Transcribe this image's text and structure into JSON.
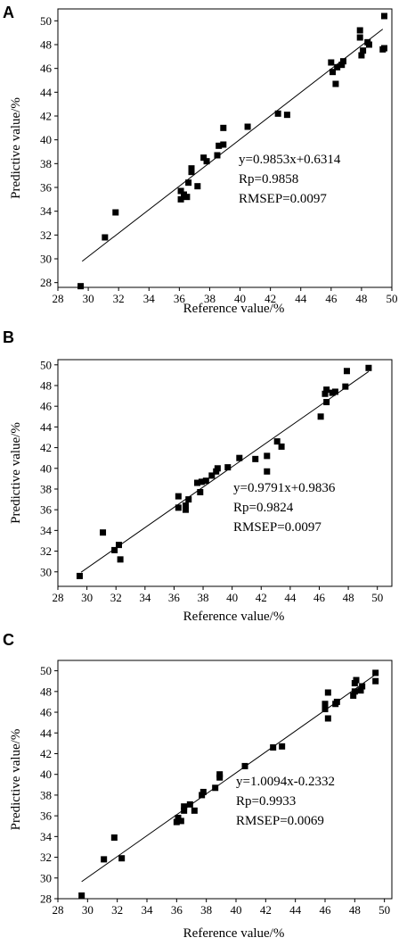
{
  "chart_data": [
    {
      "type": "scatter",
      "panel": "A",
      "xlabel": "Reference value/%",
      "ylabel": "Predictive value/%",
      "xlim": [
        28,
        50
      ],
      "ylim": [
        27.6,
        51
      ],
      "xticks": [
        28,
        30,
        32,
        34,
        36,
        38,
        40,
        42,
        44,
        46,
        48,
        50
      ],
      "yticks": [
        28,
        30,
        32,
        34,
        36,
        38,
        40,
        42,
        44,
        46,
        48,
        50
      ],
      "annotations": [
        "y=0.9853x+0.6314",
        "Rp=0.9858",
        "RMSEP=0.0097"
      ],
      "fit": {
        "slope": 0.9853,
        "intercept": 0.6314,
        "x_range": [
          29.6,
          49.4
        ]
      },
      "points": [
        [
          29.5,
          27.7
        ],
        [
          31.1,
          31.8
        ],
        [
          31.8,
          33.9
        ],
        [
          36.1,
          35.0
        ],
        [
          36.1,
          35.7
        ],
        [
          36.3,
          35.4
        ],
        [
          36.5,
          35.2
        ],
        [
          36.6,
          36.4
        ],
        [
          36.8,
          37.3
        ],
        [
          36.8,
          37.6
        ],
        [
          37.2,
          36.1
        ],
        [
          37.6,
          38.5
        ],
        [
          37.8,
          38.2
        ],
        [
          38.5,
          38.7
        ],
        [
          38.6,
          39.5
        ],
        [
          38.9,
          39.6
        ],
        [
          38.9,
          41.0
        ],
        [
          40.5,
          41.1
        ],
        [
          42.5,
          42.2
        ],
        [
          43.1,
          42.1
        ],
        [
          46.0,
          46.5
        ],
        [
          46.1,
          45.7
        ],
        [
          46.3,
          44.7
        ],
        [
          46.4,
          46.1
        ],
        [
          46.7,
          46.3
        ],
        [
          46.8,
          46.6
        ],
        [
          47.9,
          48.6
        ],
        [
          47.9,
          49.2
        ],
        [
          48.0,
          47.1
        ],
        [
          48.1,
          47.5
        ],
        [
          48.4,
          48.2
        ],
        [
          48.5,
          48.0
        ],
        [
          49.4,
          47.6
        ],
        [
          49.5,
          47.7
        ],
        [
          49.5,
          50.4
        ]
      ]
    },
    {
      "type": "scatter",
      "panel": "B",
      "xlabel": "Reference value/%",
      "ylabel": "Predictive value/%",
      "xlim": [
        28,
        51
      ],
      "ylim": [
        28.6,
        50.5
      ],
      "xticks": [
        28,
        30,
        32,
        34,
        36,
        38,
        40,
        42,
        44,
        46,
        48,
        50
      ],
      "yticks": [
        30,
        32,
        34,
        36,
        38,
        40,
        42,
        44,
        46,
        48,
        50
      ],
      "annotations": [
        "y=0.9791x+0.9836",
        "Rp=0.9824",
        "RMSEP=0.0097"
      ],
      "fit": {
        "slope": 0.9791,
        "intercept": 0.9836,
        "x_range": [
          29.6,
          49.4
        ]
      },
      "points": [
        [
          29.5,
          29.6
        ],
        [
          31.1,
          33.8
        ],
        [
          31.9,
          32.1
        ],
        [
          32.2,
          32.6
        ],
        [
          32.3,
          31.2
        ],
        [
          36.3,
          36.2
        ],
        [
          36.3,
          37.3
        ],
        [
          36.8,
          36.0
        ],
        [
          36.8,
          36.4
        ],
        [
          37.0,
          37.0
        ],
        [
          37.6,
          38.6
        ],
        [
          37.8,
          37.7
        ],
        [
          37.9,
          38.7
        ],
        [
          38.2,
          38.8
        ],
        [
          38.6,
          39.3
        ],
        [
          38.9,
          39.7
        ],
        [
          39.0,
          40.0
        ],
        [
          39.7,
          40.1
        ],
        [
          40.5,
          41.0
        ],
        [
          41.6,
          40.9
        ],
        [
          42.4,
          39.7
        ],
        [
          42.4,
          41.2
        ],
        [
          43.1,
          42.6
        ],
        [
          43.4,
          42.1
        ],
        [
          46.1,
          45.0
        ],
        [
          46.4,
          47.2
        ],
        [
          46.5,
          46.4
        ],
        [
          46.5,
          47.6
        ],
        [
          46.9,
          47.3
        ],
        [
          47.1,
          47.4
        ],
        [
          47.8,
          47.9
        ],
        [
          47.9,
          49.4
        ],
        [
          49.4,
          49.7
        ]
      ]
    },
    {
      "type": "scatter",
      "panel": "C",
      "xlabel": "Reference value/%",
      "ylabel": "Predictive value/%",
      "xlim": [
        28,
        50.5
      ],
      "ylim": [
        28,
        51
      ],
      "xticks": [
        28,
        30,
        32,
        34,
        36,
        38,
        40,
        42,
        44,
        46,
        48,
        50
      ],
      "yticks": [
        28,
        30,
        32,
        34,
        36,
        38,
        40,
        42,
        44,
        46,
        48,
        50
      ],
      "annotations": [
        "y=1.0094x-0.2332",
        "Rp=0.9933",
        "RMSEP=0.0069"
      ],
      "fit": {
        "slope": 1.0094,
        "intercept": -0.2332,
        "x_range": [
          29.6,
          49.4
        ]
      },
      "points": [
        [
          29.6,
          28.3
        ],
        [
          31.1,
          31.8
        ],
        [
          31.8,
          33.9
        ],
        [
          32.3,
          31.9
        ],
        [
          36.0,
          35.4
        ],
        [
          36.1,
          35.8
        ],
        [
          36.3,
          35.5
        ],
        [
          36.5,
          36.5
        ],
        [
          36.5,
          36.9
        ],
        [
          36.9,
          37.1
        ],
        [
          37.2,
          36.5
        ],
        [
          37.7,
          38.0
        ],
        [
          37.8,
          38.3
        ],
        [
          38.6,
          38.7
        ],
        [
          38.9,
          39.7
        ],
        [
          38.9,
          40.0
        ],
        [
          40.6,
          40.8
        ],
        [
          42.5,
          42.6
        ],
        [
          43.1,
          42.7
        ],
        [
          46.0,
          46.3
        ],
        [
          46.0,
          46.8
        ],
        [
          46.2,
          47.9
        ],
        [
          46.2,
          45.4
        ],
        [
          46.7,
          46.8
        ],
        [
          46.8,
          47.0
        ],
        [
          47.9,
          47.6
        ],
        [
          48.0,
          48.0
        ],
        [
          48.0,
          48.8
        ],
        [
          48.1,
          49.1
        ],
        [
          48.4,
          48.1
        ],
        [
          48.5,
          48.5
        ],
        [
          49.4,
          49.0
        ],
        [
          49.4,
          49.8
        ]
      ]
    }
  ]
}
